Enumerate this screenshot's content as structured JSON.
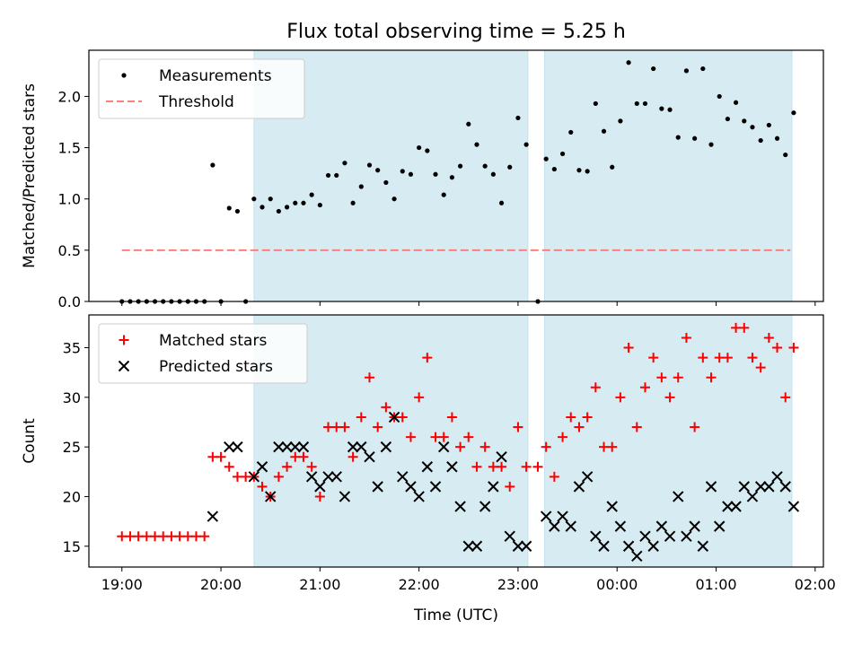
{
  "title": "Flux total observing time = 5.25 h",
  "chart_data": [
    {
      "type": "scatter",
      "ylabel": "Matched/Predicted stars",
      "xlabel": "",
      "xlim": [
        "18:40",
        "02:05"
      ],
      "ylim": [
        0,
        2.45
      ],
      "yticks": [
        0.0,
        0.5,
        1.0,
        1.5,
        2.0
      ],
      "ytick_labels": [
        "0.0",
        "0.5",
        "1.0",
        "1.5",
        "2.0"
      ],
      "shaded_intervals": [
        [
          "20:20",
          "23:06"
        ],
        [
          "23:16",
          "01:46"
        ]
      ],
      "legend": "top-left",
      "series": [
        {
          "name": "Measurements",
          "marker": "dot",
          "color": "#000000",
          "points": [
            [
              "19:00",
              0
            ],
            [
              "19:05",
              0
            ],
            [
              "19:10",
              0
            ],
            [
              "19:15",
              0
            ],
            [
              "19:20",
              0
            ],
            [
              "19:25",
              0
            ],
            [
              "19:30",
              0
            ],
            [
              "19:35",
              0
            ],
            [
              "19:40",
              0
            ],
            [
              "19:45",
              0
            ],
            [
              "19:50",
              0
            ],
            [
              "19:55",
              1.33
            ],
            [
              "20:00",
              0
            ],
            [
              "20:05",
              0.91
            ],
            [
              "20:10",
              0.88
            ],
            [
              "20:15",
              0
            ],
            [
              "20:20",
              1.0
            ],
            [
              "20:25",
              0.92
            ],
            [
              "20:30",
              1.0
            ],
            [
              "20:35",
              0.88
            ],
            [
              "20:40",
              0.92
            ],
            [
              "20:45",
              0.96
            ],
            [
              "20:50",
              0.96
            ],
            [
              "20:55",
              1.04
            ],
            [
              "21:00",
              0.94
            ],
            [
              "21:05",
              1.23
            ],
            [
              "21:10",
              1.23
            ],
            [
              "21:15",
              1.35
            ],
            [
              "21:20",
              0.96
            ],
            [
              "21:25",
              1.12
            ],
            [
              "21:30",
              1.33
            ],
            [
              "21:35",
              1.28
            ],
            [
              "21:40",
              1.16
            ],
            [
              "21:45",
              1.0
            ],
            [
              "21:50",
              1.27
            ],
            [
              "21:55",
              1.24
            ],
            [
              "22:00",
              1.5
            ],
            [
              "22:05",
              1.47
            ],
            [
              "22:10",
              1.24
            ],
            [
              "22:15",
              1.04
            ],
            [
              "22:20",
              1.21
            ],
            [
              "22:25",
              1.32
            ],
            [
              "22:30",
              1.73
            ],
            [
              "22:35",
              1.53
            ],
            [
              "22:40",
              1.32
            ],
            [
              "22:45",
              1.24
            ],
            [
              "22:50",
              0.96
            ],
            [
              "22:55",
              1.31
            ],
            [
              "23:00",
              1.79
            ],
            [
              "23:05",
              1.53
            ],
            [
              "23:12",
              0
            ],
            [
              "23:17",
              1.39
            ],
            [
              "23:22",
              1.29
            ],
            [
              "23:27",
              1.44
            ],
            [
              "23:32",
              1.65
            ],
            [
              "23:37",
              1.28
            ],
            [
              "23:42",
              1.27
            ],
            [
              "23:47",
              1.93
            ],
            [
              "23:52",
              1.66
            ],
            [
              "23:57",
              1.31
            ],
            [
              "00:02",
              1.76
            ],
            [
              "00:07",
              2.33
            ],
            [
              "00:12",
              1.93
            ],
            [
              "00:17",
              1.93
            ],
            [
              "00:22",
              2.27
            ],
            [
              "00:27",
              1.88
            ],
            [
              "00:32",
              1.87
            ],
            [
              "00:37",
              1.6
            ],
            [
              "00:42",
              2.25
            ],
            [
              "00:47",
              1.59
            ],
            [
              "00:52",
              2.27
            ],
            [
              "00:57",
              1.53
            ],
            [
              "01:02",
              2.0
            ],
            [
              "01:07",
              1.78
            ],
            [
              "01:12",
              1.94
            ],
            [
              "01:17",
              1.76
            ],
            [
              "01:22",
              1.7
            ],
            [
              "01:27",
              1.57
            ],
            [
              "01:32",
              1.72
            ],
            [
              "01:37",
              1.59
            ],
            [
              "01:42",
              1.43
            ],
            [
              "01:47",
              1.84
            ]
          ]
        },
        {
          "name": "Threshold",
          "style": "dashed",
          "color": "#ff7f7f",
          "points": [
            [
              "19:00",
              0.5
            ],
            [
              "01:45",
              0.5
            ]
          ]
        }
      ]
    },
    {
      "type": "scatter",
      "ylabel": "Count",
      "xlabel": "Time (UTC)",
      "xlim": [
        "18:40",
        "02:05"
      ],
      "ylim": [
        12.9,
        38.3
      ],
      "yticks": [
        15,
        20,
        25,
        30,
        35
      ],
      "ytick_labels": [
        "15",
        "20",
        "25",
        "30",
        "35"
      ],
      "xticks": [
        "19:00",
        "20:00",
        "21:00",
        "22:00",
        "23:00",
        "00:00",
        "01:00",
        "02:00"
      ],
      "shaded_intervals": [
        [
          "20:20",
          "23:06"
        ],
        [
          "23:16",
          "01:46"
        ]
      ],
      "legend": "top-left",
      "series": [
        {
          "name": "Matched stars",
          "marker": "plus",
          "color": "#ff0000",
          "points": [
            [
              "19:00",
              16
            ],
            [
              "19:05",
              16
            ],
            [
              "19:10",
              16
            ],
            [
              "19:15",
              16
            ],
            [
              "19:20",
              16
            ],
            [
              "19:25",
              16
            ],
            [
              "19:30",
              16
            ],
            [
              "19:35",
              16
            ],
            [
              "19:40",
              16
            ],
            [
              "19:45",
              16
            ],
            [
              "19:50",
              16
            ],
            [
              "19:55",
              24
            ],
            [
              "20:00",
              24
            ],
            [
              "20:05",
              23
            ],
            [
              "20:10",
              22
            ],
            [
              "20:15",
              22
            ],
            [
              "20:20",
              22
            ],
            [
              "20:25",
              21
            ],
            [
              "20:30",
              20
            ],
            [
              "20:35",
              22
            ],
            [
              "20:40",
              23
            ],
            [
              "20:45",
              24
            ],
            [
              "20:50",
              24
            ],
            [
              "20:55",
              23
            ],
            [
              "21:00",
              20
            ],
            [
              "21:05",
              27
            ],
            [
              "21:10",
              27
            ],
            [
              "21:15",
              27
            ],
            [
              "21:20",
              24
            ],
            [
              "21:25",
              28
            ],
            [
              "21:30",
              32
            ],
            [
              "21:35",
              27
            ],
            [
              "21:40",
              29
            ],
            [
              "21:45",
              28
            ],
            [
              "21:50",
              28
            ],
            [
              "21:55",
              26
            ],
            [
              "22:00",
              30
            ],
            [
              "22:05",
              34
            ],
            [
              "22:10",
              26
            ],
            [
              "22:15",
              26
            ],
            [
              "22:20",
              28
            ],
            [
              "22:25",
              25
            ],
            [
              "22:30",
              26
            ],
            [
              "22:35",
              23
            ],
            [
              "22:40",
              25
            ],
            [
              "22:45",
              23
            ],
            [
              "22:50",
              23
            ],
            [
              "22:55",
              21
            ],
            [
              "23:00",
              27
            ],
            [
              "23:05",
              23
            ],
            [
              "23:12",
              23
            ],
            [
              "23:17",
              25
            ],
            [
              "23:22",
              22
            ],
            [
              "23:27",
              26
            ],
            [
              "23:32",
              28
            ],
            [
              "23:37",
              27
            ],
            [
              "23:42",
              28
            ],
            [
              "23:47",
              31
            ],
            [
              "23:52",
              25
            ],
            [
              "23:57",
              25
            ],
            [
              "00:02",
              30
            ],
            [
              "00:07",
              35
            ],
            [
              "00:12",
              27
            ],
            [
              "00:17",
              31
            ],
            [
              "00:22",
              34
            ],
            [
              "00:27",
              32
            ],
            [
              "00:32",
              30
            ],
            [
              "00:37",
              32
            ],
            [
              "00:42",
              36
            ],
            [
              "00:47",
              27
            ],
            [
              "00:52",
              34
            ],
            [
              "00:57",
              32
            ],
            [
              "01:02",
              34
            ],
            [
              "01:07",
              34
            ],
            [
              "01:12",
              37
            ],
            [
              "01:17",
              37
            ],
            [
              "01:22",
              34
            ],
            [
              "01:27",
              33
            ],
            [
              "01:32",
              36
            ],
            [
              "01:37",
              35
            ],
            [
              "01:42",
              30
            ],
            [
              "01:47",
              35
            ]
          ]
        },
        {
          "name": "Predicted stars",
          "marker": "x",
          "color": "#000000",
          "points": [
            [
              "19:55",
              18
            ],
            [
              "20:05",
              25
            ],
            [
              "20:10",
              25
            ],
            [
              "20:20",
              22
            ],
            [
              "20:25",
              23
            ],
            [
              "20:30",
              20
            ],
            [
              "20:35",
              25
            ],
            [
              "20:40",
              25
            ],
            [
              "20:45",
              25
            ],
            [
              "20:50",
              25
            ],
            [
              "20:55",
              22
            ],
            [
              "21:00",
              21
            ],
            [
              "21:05",
              22
            ],
            [
              "21:10",
              22
            ],
            [
              "21:15",
              20
            ],
            [
              "21:20",
              25
            ],
            [
              "21:25",
              25
            ],
            [
              "21:30",
              24
            ],
            [
              "21:35",
              21
            ],
            [
              "21:40",
              25
            ],
            [
              "21:45",
              28
            ],
            [
              "21:50",
              22
            ],
            [
              "21:55",
              21
            ],
            [
              "22:00",
              20
            ],
            [
              "22:05",
              23
            ],
            [
              "22:10",
              21
            ],
            [
              "22:15",
              25
            ],
            [
              "22:20",
              23
            ],
            [
              "22:25",
              19
            ],
            [
              "22:30",
              15
            ],
            [
              "22:35",
              15
            ],
            [
              "22:40",
              19
            ],
            [
              "22:45",
              21
            ],
            [
              "22:50",
              24
            ],
            [
              "22:55",
              16
            ],
            [
              "23:00",
              15
            ],
            [
              "23:05",
              15
            ],
            [
              "23:17",
              18
            ],
            [
              "23:22",
              17
            ],
            [
              "23:27",
              18
            ],
            [
              "23:32",
              17
            ],
            [
              "23:37",
              21
            ],
            [
              "23:42",
              22
            ],
            [
              "23:47",
              16
            ],
            [
              "23:52",
              15
            ],
            [
              "23:57",
              19
            ],
            [
              "00:02",
              17
            ],
            [
              "00:07",
              15
            ],
            [
              "00:12",
              14
            ],
            [
              "00:17",
              16
            ],
            [
              "00:22",
              15
            ],
            [
              "00:27",
              17
            ],
            [
              "00:32",
              16
            ],
            [
              "00:37",
              20
            ],
            [
              "00:42",
              16
            ],
            [
              "00:47",
              17
            ],
            [
              "00:52",
              15
            ],
            [
              "00:57",
              21
            ],
            [
              "01:02",
              17
            ],
            [
              "01:07",
              19
            ],
            [
              "01:12",
              19
            ],
            [
              "01:17",
              21
            ],
            [
              "01:22",
              20
            ],
            [
              "01:27",
              21
            ],
            [
              "01:32",
              21
            ],
            [
              "01:37",
              22
            ],
            [
              "01:42",
              21
            ],
            [
              "01:47",
              19
            ]
          ]
        }
      ]
    }
  ]
}
